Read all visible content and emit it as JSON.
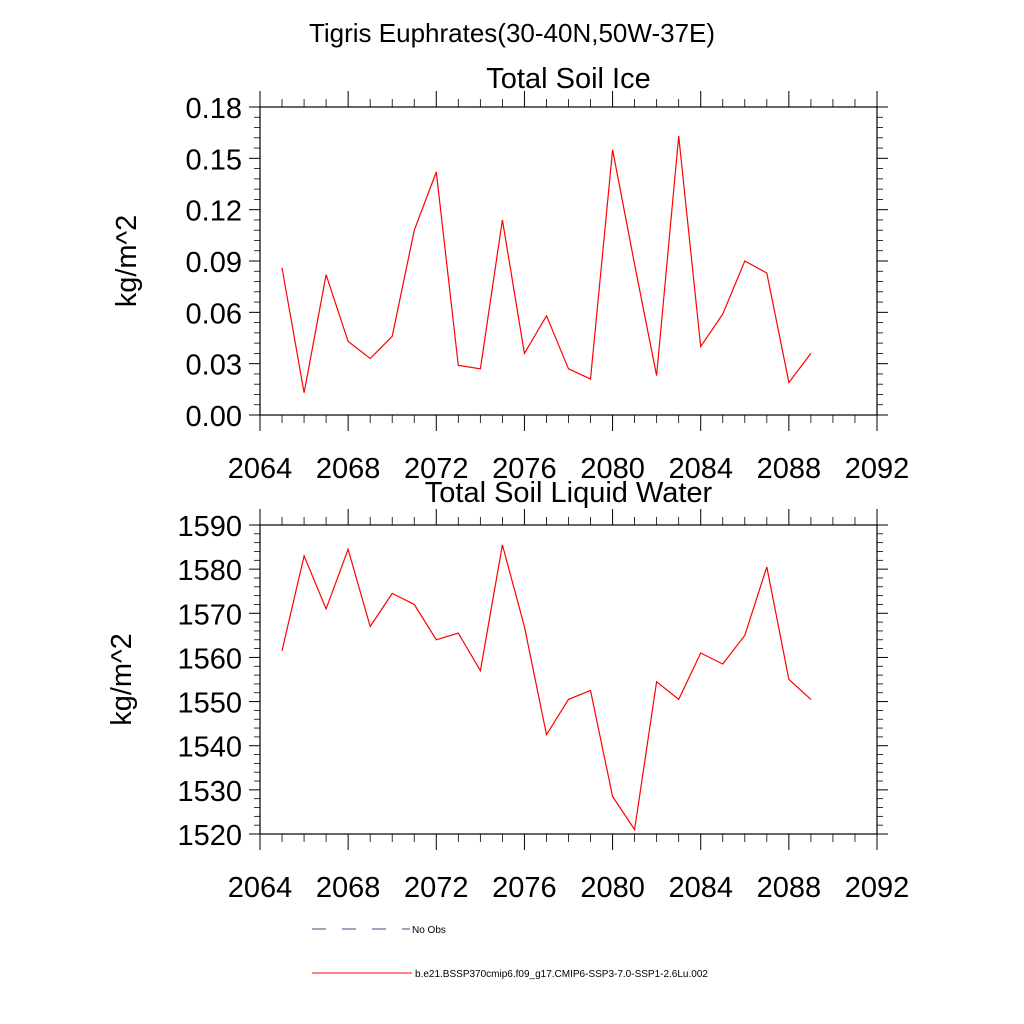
{
  "figure_title": "Tigris Euphrates(30-40N,50W-37E)",
  "colors": {
    "model_line": "#ff0000",
    "obs_line": "#3b4a8a",
    "axis": "#000000"
  },
  "legend": [
    {
      "label": "No Obs",
      "style": "dashed"
    },
    {
      "label": "b.e21.BSSP370cmip6.f09_g17.CMIP6-SSP3-7.0-SSP1-2.6Lu.002",
      "style": "solid"
    }
  ],
  "chart_data": [
    {
      "type": "line",
      "title": "Total Soil Ice",
      "xlabel": "",
      "ylabel": "kg/m^2",
      "xlim": [
        2064,
        2092
      ],
      "ylim": [
        0,
        0.18
      ],
      "xticks": [
        2064,
        2068,
        2072,
        2076,
        2080,
        2084,
        2088,
        2092
      ],
      "xtick_labels": [
        "2064",
        "2068",
        "2072",
        "2076",
        "2080",
        "2084",
        "2088",
        "2092"
      ],
      "yticks": [
        0,
        0.03,
        0.06,
        0.09,
        0.12,
        0.15,
        0.18
      ],
      "ytick_labels": [
        "0.00",
        "0.03",
        "0.06",
        "0.09",
        "0.12",
        "0.15",
        "0.18"
      ],
      "grid": false,
      "series": [
        {
          "name": "b.e21.BSSP370cmip6.f09_g17.CMIP6-SSP3-7.0-SSP1-2.6Lu.002",
          "x": [
            2065,
            2066,
            2067,
            2068,
            2069,
            2070,
            2071,
            2072,
            2073,
            2074,
            2075,
            2076,
            2077,
            2078,
            2079,
            2080,
            2081,
            2082,
            2083,
            2084,
            2085,
            2086,
            2087,
            2088,
            2089
          ],
          "y": [
            0.086,
            0.013,
            0.082,
            0.043,
            0.033,
            0.046,
            0.108,
            0.142,
            0.029,
            0.027,
            0.114,
            0.036,
            0.058,
            0.027,
            0.021,
            0.155,
            0.088,
            0.023,
            0.163,
            0.04,
            0.059,
            0.09,
            0.083,
            0.019,
            0.036
          ]
        }
      ]
    },
    {
      "type": "line",
      "title": "Total Soil Liquid Water",
      "xlabel": "",
      "ylabel": "kg/m^2",
      "xlim": [
        2064,
        2092
      ],
      "ylim": [
        1520,
        1590
      ],
      "xticks": [
        2064,
        2068,
        2072,
        2076,
        2080,
        2084,
        2088,
        2092
      ],
      "xtick_labels": [
        "2064",
        "2068",
        "2072",
        "2076",
        "2080",
        "2084",
        "2088",
        "2092"
      ],
      "yticks": [
        1520,
        1530,
        1540,
        1550,
        1560,
        1570,
        1580,
        1590
      ],
      "ytick_labels": [
        "1520",
        "1530",
        "1540",
        "1550",
        "1560",
        "1570",
        "1580",
        "1590"
      ],
      "grid": false,
      "series": [
        {
          "name": "b.e21.BSSP370cmip6.f09_g17.CMIP6-SSP3-7.0-SSP1-2.6Lu.002",
          "x": [
            2065,
            2066,
            2067,
            2068,
            2069,
            2070,
            2071,
            2072,
            2073,
            2074,
            2075,
            2076,
            2077,
            2078,
            2079,
            2080,
            2081,
            2082,
            2083,
            2084,
            2085,
            2086,
            2087,
            2088,
            2089
          ],
          "y": [
            1561.5,
            1583,
            1571,
            1584.5,
            1567,
            1574.5,
            1572,
            1564,
            1565.5,
            1557,
            1585.5,
            1567,
            1542.5,
            1550.5,
            1552.5,
            1528.5,
            1521,
            1554.5,
            1550.5,
            1561,
            1558.5,
            1565,
            1580.5,
            1555,
            1550.5
          ]
        }
      ]
    }
  ]
}
